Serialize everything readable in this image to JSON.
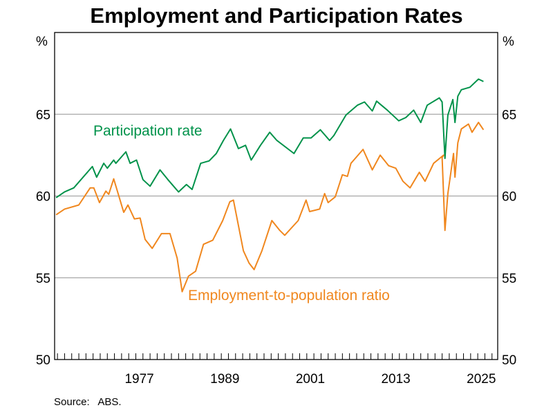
{
  "chart_data": {
    "type": "line",
    "title": "Employment and Participation Rates",
    "ylabel_left": "%",
    "ylabel_right": "%",
    "ylim": [
      50,
      70
    ],
    "yticks": [
      50,
      55,
      60,
      65
    ],
    "xlim": [
      1965.6,
      2027.8
    ],
    "xtick_labels": [
      "1977",
      "1989",
      "2001",
      "2013",
      "2025"
    ],
    "grid": true,
    "source": "Source:   ABS.",
    "series": [
      {
        "name": "Participation rate",
        "color": "#00924a",
        "points": [
          [
            1965.8,
            59.9
          ],
          [
            1967.0,
            60.25
          ],
          [
            1968.3,
            60.5
          ],
          [
            1970.3,
            61.5
          ],
          [
            1970.9,
            61.8
          ],
          [
            1971.5,
            61.15
          ],
          [
            1972.5,
            62.0
          ],
          [
            1973.0,
            61.7
          ],
          [
            1973.9,
            62.2
          ],
          [
            1974.2,
            62.0
          ],
          [
            1975.6,
            62.7
          ],
          [
            1976.2,
            62.0
          ],
          [
            1977.1,
            62.2
          ],
          [
            1978.0,
            61.0
          ],
          [
            1979.0,
            60.6
          ],
          [
            1980.4,
            61.6
          ],
          [
            1981.5,
            61.0
          ],
          [
            1983.0,
            60.25
          ],
          [
            1984.1,
            60.7
          ],
          [
            1984.9,
            60.4
          ],
          [
            1986.1,
            62.0
          ],
          [
            1987.3,
            62.15
          ],
          [
            1988.3,
            62.6
          ],
          [
            1989.3,
            63.4
          ],
          [
            1990.3,
            64.1
          ],
          [
            1991.4,
            62.9
          ],
          [
            1992.4,
            63.1
          ],
          [
            1993.2,
            62.2
          ],
          [
            1994.5,
            63.1
          ],
          [
            1995.8,
            63.9
          ],
          [
            1996.8,
            63.4
          ],
          [
            1999.2,
            62.6
          ],
          [
            2000.5,
            63.55
          ],
          [
            2001.6,
            63.55
          ],
          [
            2002.9,
            64.05
          ],
          [
            2004.2,
            63.4
          ],
          [
            2004.8,
            63.7
          ],
          [
            2006.5,
            64.95
          ],
          [
            2008.1,
            65.55
          ],
          [
            2009.1,
            65.75
          ],
          [
            2010.2,
            65.2
          ],
          [
            2010.8,
            65.8
          ],
          [
            2012.3,
            65.25
          ],
          [
            2013.9,
            64.6
          ],
          [
            2014.9,
            64.8
          ],
          [
            2016.0,
            65.25
          ],
          [
            2017.0,
            64.5
          ],
          [
            2017.9,
            65.55
          ],
          [
            2019.6,
            66.0
          ],
          [
            2020.0,
            65.75
          ],
          [
            2020.4,
            62.3
          ],
          [
            2020.8,
            64.95
          ],
          [
            2021.5,
            65.9
          ],
          [
            2021.8,
            64.5
          ],
          [
            2022.2,
            66.1
          ],
          [
            2022.7,
            66.5
          ],
          [
            2023.9,
            66.65
          ],
          [
            2025.1,
            67.15
          ],
          [
            2025.8,
            67.0
          ]
        ],
        "label": "Participation rate"
      },
      {
        "name": "Employment-to-population ratio",
        "color": "#f0871e",
        "points": [
          [
            1965.8,
            58.85
          ],
          [
            1967.0,
            59.2
          ],
          [
            1969.0,
            59.45
          ],
          [
            1970.6,
            60.5
          ],
          [
            1971.1,
            60.5
          ],
          [
            1971.9,
            59.6
          ],
          [
            1972.8,
            60.3
          ],
          [
            1973.2,
            60.1
          ],
          [
            1973.9,
            61.05
          ],
          [
            1975.3,
            59.0
          ],
          [
            1975.9,
            59.45
          ],
          [
            1976.8,
            58.6
          ],
          [
            1977.6,
            58.65
          ],
          [
            1978.3,
            57.35
          ],
          [
            1979.3,
            56.8
          ],
          [
            1980.6,
            57.7
          ],
          [
            1981.8,
            57.7
          ],
          [
            1982.8,
            56.2
          ],
          [
            1983.5,
            54.15
          ],
          [
            1984.4,
            55.1
          ],
          [
            1985.4,
            55.4
          ],
          [
            1986.5,
            57.05
          ],
          [
            1987.8,
            57.3
          ],
          [
            1989.2,
            58.5
          ],
          [
            1990.2,
            59.65
          ],
          [
            1990.7,
            59.75
          ],
          [
            1992.1,
            56.65
          ],
          [
            1992.9,
            55.9
          ],
          [
            1993.6,
            55.5
          ],
          [
            1994.7,
            56.65
          ],
          [
            1996.1,
            58.5
          ],
          [
            1997.2,
            57.9
          ],
          [
            1997.9,
            57.6
          ],
          [
            1999.8,
            58.5
          ],
          [
            2000.9,
            59.75
          ],
          [
            2001.4,
            59.05
          ],
          [
            2002.8,
            59.2
          ],
          [
            2003.5,
            60.15
          ],
          [
            2004.0,
            59.6
          ],
          [
            2005.0,
            59.95
          ],
          [
            2006.0,
            61.3
          ],
          [
            2006.7,
            61.2
          ],
          [
            2007.2,
            62.0
          ],
          [
            2008.9,
            62.85
          ],
          [
            2010.2,
            61.6
          ],
          [
            2011.3,
            62.5
          ],
          [
            2012.5,
            61.85
          ],
          [
            2013.5,
            61.7
          ],
          [
            2014.5,
            60.9
          ],
          [
            2015.5,
            60.5
          ],
          [
            2016.8,
            61.45
          ],
          [
            2017.6,
            60.9
          ],
          [
            2018.8,
            62.0
          ],
          [
            2020.2,
            62.5
          ],
          [
            2020.0,
            62.35
          ],
          [
            2020.4,
            57.9
          ],
          [
            2020.8,
            60.15
          ],
          [
            2021.6,
            62.6
          ],
          [
            2021.8,
            61.15
          ],
          [
            2022.2,
            63.25
          ],
          [
            2022.7,
            64.1
          ],
          [
            2023.7,
            64.4
          ],
          [
            2024.2,
            63.9
          ],
          [
            2025.1,
            64.5
          ],
          [
            2025.8,
            64.05
          ]
        ],
        "label": "Employment-to-population ratio"
      }
    ]
  }
}
